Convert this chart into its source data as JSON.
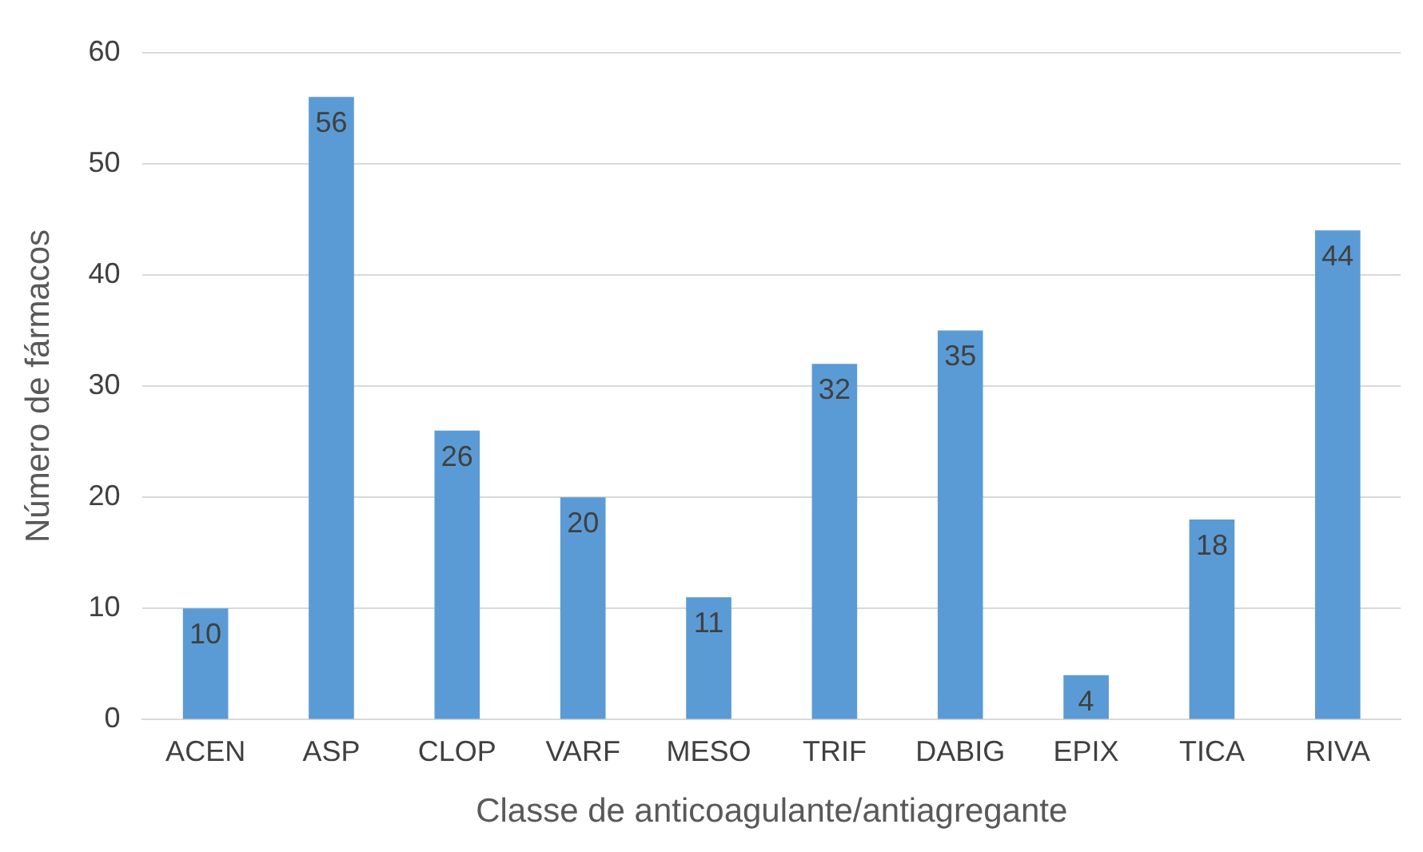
{
  "chart_data": {
    "type": "bar",
    "xlabel": "Classe de anticoagulante/antiagregante",
    "ylabel": "Número de fármacos",
    "categories": [
      "ACEN",
      "ASP",
      "CLOP",
      "VARF",
      "MESO",
      "TRIF",
      "DABIG",
      "EPIX",
      "TICA",
      "RIVA"
    ],
    "values": [
      10,
      56,
      26,
      20,
      11,
      32,
      35,
      4,
      18,
      44
    ],
    "color": "#5b9bd5",
    "ylim": [
      0,
      60
    ],
    "yticks": [
      0,
      10,
      20,
      30,
      40,
      50,
      60
    ],
    "grid": "y",
    "data_labels": true
  }
}
